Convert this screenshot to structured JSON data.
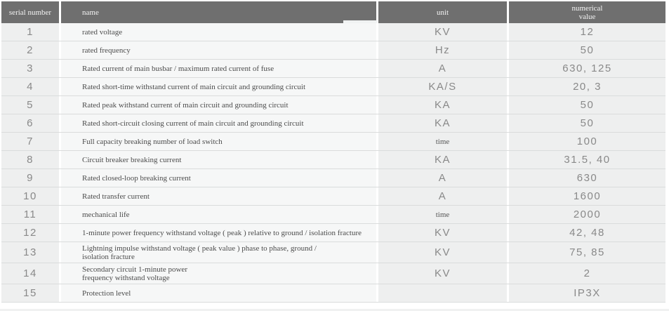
{
  "table": {
    "columns": {
      "serial": "serial number",
      "name": "name",
      "unit": "unit",
      "value": "numerical\nvalue"
    },
    "rows": [
      {
        "serial": "1",
        "name": "rated voltage",
        "unit": "KV",
        "unit_small": false,
        "value": "12"
      },
      {
        "serial": "2",
        "name": "rated frequency",
        "unit": "Hz",
        "unit_small": false,
        "value": "50"
      },
      {
        "serial": "3",
        "name": "Rated current of main busbar / maximum rated current of fuse",
        "unit": "A",
        "unit_small": false,
        "value": "630, 125"
      },
      {
        "serial": "4",
        "name": "Rated short-time withstand current of main circuit and grounding circuit",
        "unit": "KA/S",
        "unit_small": false,
        "value": "20, 3"
      },
      {
        "serial": "5",
        "name": "Rated peak withstand current of main circuit and grounding circuit",
        "unit": "KA",
        "unit_small": false,
        "value": "50"
      },
      {
        "serial": "6",
        "name": "Rated short-circuit closing current of main circuit and grounding circuit",
        "unit": "KA",
        "unit_small": false,
        "value": "50"
      },
      {
        "serial": "7",
        "name": "Full capacity breaking number of load switch",
        "unit": "time",
        "unit_small": true,
        "value": "100"
      },
      {
        "serial": "8",
        "name": "Circuit breaker breaking current",
        "unit": "KA",
        "unit_small": false,
        "value": "31.5, 40"
      },
      {
        "serial": "9",
        "name": "Rated closed-loop breaking current",
        "unit": "A",
        "unit_small": false,
        "value": "630"
      },
      {
        "serial": "10",
        "name": "Rated transfer current",
        "unit": "A",
        "unit_small": false,
        "value": "1600"
      },
      {
        "serial": "11",
        "name": "mechanical life",
        "unit": "time",
        "unit_small": true,
        "value": "2000"
      },
      {
        "serial": "12",
        "name": "1-minute power frequency withstand voltage ( peak ) relative to ground / isolation fracture",
        "unit": "KV",
        "unit_small": false,
        "value": "42, 48"
      },
      {
        "serial": "13",
        "name": "Lightning impulse withstand voltage ( peak value ) phase to phase, ground /\nisolation fracture",
        "unit": "KV",
        "unit_small": false,
        "value": "75, 85"
      },
      {
        "serial": "14",
        "name": "Secondary circuit 1-minute power\nfrequency withstand voltage",
        "unit": "KV",
        "unit_small": false,
        "value": "2"
      },
      {
        "serial": "15",
        "name": "Protection level",
        "unit": "",
        "unit_small": false,
        "value": "IP3X"
      }
    ]
  },
  "colors": {
    "header_bg": "#6f6f6f",
    "header_text": "#f2f2f2",
    "cell_gray_bg": "#eeefef",
    "name_cell_bg": "#f6f7f7",
    "row_separator": "#dadcdc",
    "value_text": "#898989",
    "name_text": "#4c4c4c"
  }
}
